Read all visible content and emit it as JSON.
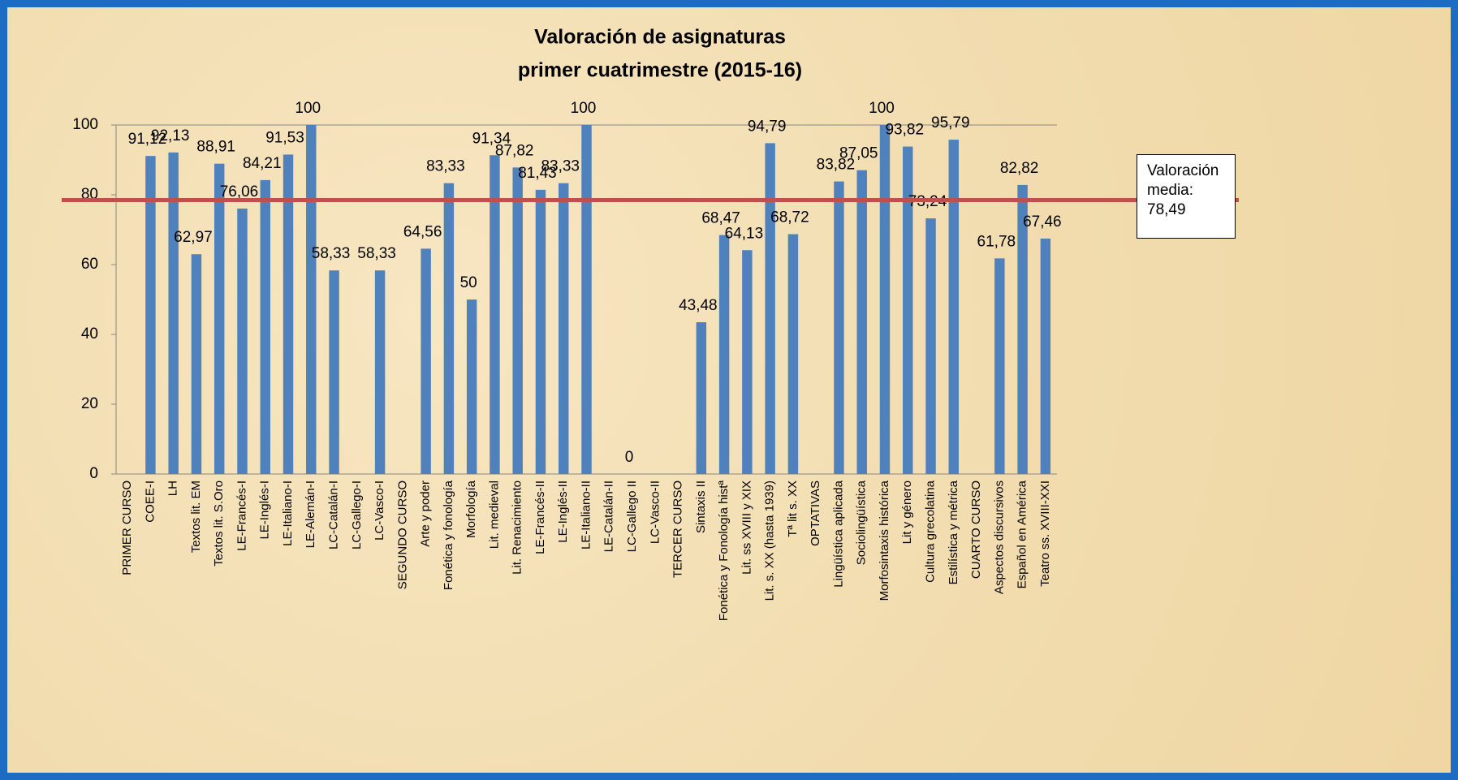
{
  "chart_data": {
    "type": "bar",
    "title": "Valoración de asignaturas",
    "subtitle": "primer cuatrimestre (2015-16)",
    "categories": [
      "PRIMER CURSO",
      "COEE-I",
      "LH",
      "Textos lit. EM",
      "Textos lit. S.Oro",
      "LE-Francés-I",
      "LE-Inglés-I",
      "LE-Italiano-I",
      "LE-Alemán-I",
      "LC-Catalán-I",
      "LC-Gallego-I",
      "LC-Vasco-I",
      "SEGUNDO CURSO",
      "Arte y poder",
      "Fonética y fonología",
      "Morfología",
      "Lit. medieval",
      "Lit. Renacimiento",
      "LE-Francés-II",
      "LE-Inglés-II",
      "LE-Italiano-II",
      "LE-Catalán-II",
      "LC-Gallego II",
      "LC-Vasco-II",
      "TERCER CURSO",
      "Sintaxis II",
      "Fonética y Fonología histª",
      "Lit. ss XVIII y XIX",
      "Lit. s. XX (hasta 1939)",
      "Tª lit s. XX",
      "OPTATIVAS",
      "Lingüística aplicada",
      "Sociolingüística",
      "Morfosintaxis histórica",
      "Lit y género",
      "Cultura grecolatina",
      "Estilística y métrica",
      "CUARTO CURSO",
      "Aspectos discursivos",
      "Español en América",
      "Teatro ss. XVIII-XXI"
    ],
    "values": [
      null,
      91.12,
      92.13,
      62.97,
      88.91,
      76.06,
      84.21,
      91.53,
      100,
      58.33,
      null,
      58.33,
      null,
      64.56,
      83.33,
      50,
      91.34,
      87.82,
      81.43,
      83.33,
      100,
      null,
      0,
      null,
      null,
      43.48,
      68.47,
      64.13,
      94.79,
      68.72,
      null,
      83.82,
      87.05,
      100,
      93.82,
      73.24,
      95.79,
      null,
      61.78,
      82.82,
      67.46
    ],
    "value_labels": [
      null,
      "91,12",
      "92,13",
      "62,97",
      "88,91",
      "76,06",
      "84,21",
      "91,53",
      "100",
      "58,33",
      null,
      "58,33",
      null,
      "64,56",
      "83,33",
      "50",
      "91,34",
      "87,82",
      "81,43",
      "83,33",
      "100",
      null,
      "0",
      null,
      null,
      "43,48",
      "68,47",
      "64,13",
      "94,79",
      "68,72",
      null,
      "83,82",
      "87,05",
      "100",
      "93,82",
      "73,24",
      "95,79",
      null,
      "61,78",
      "82,82",
      "67,46"
    ],
    "color": "#4f81bd",
    "ylim": [
      0,
      100
    ],
    "yticks": [
      0,
      20,
      40,
      60,
      80,
      100
    ],
    "grid": false,
    "average": {
      "label": "Valoración media:",
      "value": 78.49,
      "value_label": "78,49",
      "color": "#c0504d"
    }
  }
}
